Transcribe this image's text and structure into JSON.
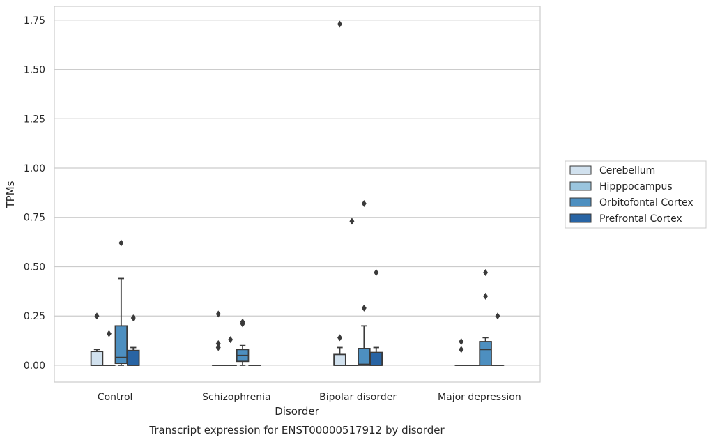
{
  "chart_data": {
    "type": "box",
    "title": "",
    "xlabel": "Disorder",
    "ylabel": "TPMs",
    "caption": "Transcript expression for ENST00000517912 by disorder",
    "ylim": [
      -0.085,
      1.82
    ],
    "yticks": [
      0.0,
      0.25,
      0.5,
      0.75,
      1.0,
      1.25,
      1.5,
      1.75
    ],
    "ytick_labels": [
      "0.00",
      "0.25",
      "0.50",
      "0.75",
      "1.00",
      "1.25",
      "1.50",
      "1.75"
    ],
    "grid": "horizontal",
    "legend_position": "outside-right",
    "categories": [
      "Control",
      "Schizophrenia",
      "Bipolar disorder",
      "Major depression"
    ],
    "series": [
      {
        "name": "Cerebellum",
        "color": "#d1e1ee",
        "boxes": [
          {
            "q1": 0.0,
            "median": 0.0,
            "q3": 0.07,
            "whisker_low": 0.0,
            "whisker_high": 0.08,
            "outliers": [
              0.25
            ]
          },
          {
            "q1": 0.0,
            "median": 0.0,
            "q3": 0.0,
            "whisker_low": 0.0,
            "whisker_high": 0.0,
            "outliers": [
              0.09,
              0.11,
              0.26
            ]
          },
          {
            "q1": 0.0,
            "median": 0.0,
            "q3": 0.055,
            "whisker_low": 0.0,
            "whisker_high": 0.09,
            "outliers": [
              0.14,
              1.73
            ]
          },
          {
            "q1": 0.0,
            "median": 0.0,
            "q3": 0.0,
            "whisker_low": 0.0,
            "whisker_high": 0.0,
            "outliers": [
              0.08,
              0.12
            ]
          }
        ]
      },
      {
        "name": "Hipppocampus",
        "color": "#9ac5de",
        "boxes": [
          {
            "q1": 0.0,
            "median": 0.0,
            "q3": 0.0,
            "whisker_low": 0.0,
            "whisker_high": 0.0,
            "outliers": [
              0.16
            ]
          },
          {
            "q1": 0.0,
            "median": 0.0,
            "q3": 0.0,
            "whisker_low": 0.0,
            "whisker_high": 0.0,
            "outliers": [
              0.13
            ]
          },
          {
            "q1": 0.0,
            "median": 0.0,
            "q3": 0.0,
            "whisker_low": 0.0,
            "whisker_high": 0.0,
            "outliers": [
              0.73
            ]
          },
          {
            "q1": 0.0,
            "median": 0.0,
            "q3": 0.0,
            "whisker_low": 0.0,
            "whisker_high": 0.0,
            "outliers": []
          }
        ]
      },
      {
        "name": "Orbitofontal Cortex",
        "color": "#4d8fc0",
        "boxes": [
          {
            "q1": 0.01,
            "median": 0.04,
            "q3": 0.2,
            "whisker_low": 0.0,
            "whisker_high": 0.44,
            "outliers": [
              0.62
            ]
          },
          {
            "q1": 0.02,
            "median": 0.05,
            "q3": 0.08,
            "whisker_low": 0.0,
            "whisker_high": 0.1,
            "outliers": [
              0.21,
              0.22
            ]
          },
          {
            "q1": 0.0,
            "median": 0.005,
            "q3": 0.085,
            "whisker_low": 0.0,
            "whisker_high": 0.2,
            "outliers": [
              0.29,
              0.82
            ]
          },
          {
            "q1": 0.0,
            "median": 0.08,
            "q3": 0.12,
            "whisker_low": 0.0,
            "whisker_high": 0.14,
            "outliers": [
              0.35,
              0.47
            ]
          }
        ]
      },
      {
        "name": "Prefrontal Cortex",
        "color": "#2864a4",
        "boxes": [
          {
            "q1": 0.0,
            "median": 0.0,
            "q3": 0.075,
            "whisker_low": 0.0,
            "whisker_high": 0.09,
            "outliers": [
              0.24
            ]
          },
          {
            "q1": 0.0,
            "median": 0.0,
            "q3": 0.0,
            "whisker_low": 0.0,
            "whisker_high": 0.0,
            "outliers": []
          },
          {
            "q1": 0.0,
            "median": 0.0,
            "q3": 0.065,
            "whisker_low": 0.0,
            "whisker_high": 0.09,
            "outliers": [
              0.47
            ]
          },
          {
            "q1": 0.0,
            "median": 0.0,
            "q3": 0.0,
            "whisker_low": 0.0,
            "whisker_high": 0.0,
            "outliers": [
              0.25
            ]
          }
        ]
      }
    ]
  }
}
